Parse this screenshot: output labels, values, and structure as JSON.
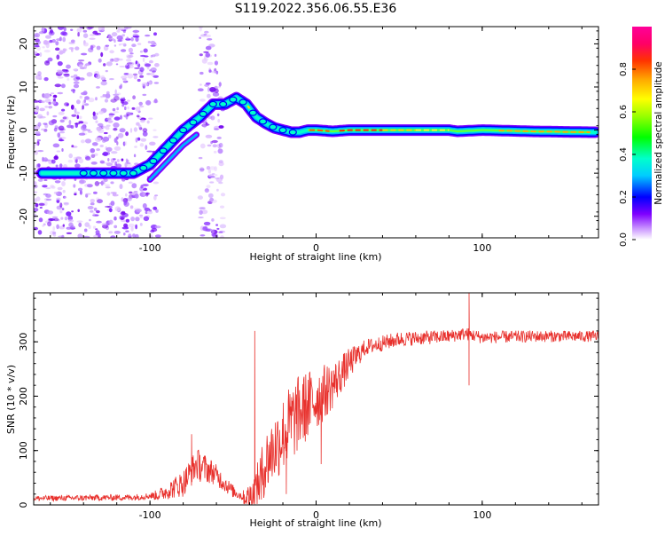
{
  "title": "S119.2022.356.06.55.E36",
  "chart_data": [
    {
      "type": "heatmap",
      "xlabel": "Height of straight line (km)",
      "ylabel": "Frequency (Hz)",
      "xlim": [
        -170,
        170
      ],
      "ylim": [
        -25,
        24
      ],
      "xticks": [
        -100,
        0,
        100
      ],
      "yticks": [
        -20,
        -10,
        0,
        10,
        20
      ],
      "ridge": {
        "x": [
          -165,
          -150,
          -135,
          -120,
          -110,
          -100,
          -90,
          -80,
          -70,
          -62,
          -55,
          -48,
          -42,
          -36,
          -30,
          -25,
          -20,
          -15,
          -10,
          -5,
          0,
          10,
          20,
          50,
          80,
          85,
          100,
          130,
          165
        ],
        "y": [
          -10,
          -10,
          -10,
          -10,
          -10,
          -8,
          -4,
          0,
          3,
          6,
          6,
          7.5,
          6,
          3,
          1.5,
          0.5,
          0,
          -0.5,
          -0.5,
          0,
          0,
          -0.3,
          0,
          0,
          0,
          -0.3,
          0,
          -0.3,
          -0.5
        ]
      },
      "colorbar": {
        "label": "Normalized spectral amplitude",
        "range": [
          0.0,
          1.0
        ],
        "ticks": [
          "0.0",
          "0.2",
          "0.4",
          "0.6",
          "0.8"
        ],
        "colormap": "gist_ncar_r"
      }
    },
    {
      "type": "line",
      "xlabel": "Height of straight line (km)",
      "ylabel": "SNR (10 * v/v)",
      "xlim": [
        -170,
        170
      ],
      "ylim": [
        0,
        390
      ],
      "xticks": [
        -100,
        0,
        100
      ],
      "yticks": [
        0,
        100,
        200,
        300
      ],
      "color": "#e8302c",
      "trend": {
        "x": [
          -170,
          -110,
          -95,
          -80,
          -72,
          -62,
          -50,
          -42,
          -37,
          -30,
          -20,
          -10,
          0,
          10,
          20,
          30,
          50,
          80,
          90,
          100,
          130,
          170
        ],
        "y": [
          12,
          14,
          18,
          40,
          75,
          60,
          25,
          12,
          20,
          80,
          130,
          170,
          195,
          220,
          260,
          290,
          305,
          310,
          315,
          308,
          310,
          310
        ]
      },
      "noise": {
        "x": [
          -170,
          -100,
          -80,
          -70,
          -60,
          -45,
          -38,
          -30,
          -15,
          0,
          15,
          30,
          80,
          170
        ],
        "amp": [
          5,
          6,
          25,
          30,
          20,
          8,
          35,
          60,
          75,
          60,
          35,
          15,
          12,
          10
        ]
      },
      "spikes": [
        {
          "x": -37,
          "y": 320
        },
        {
          "x": -33,
          "y": 10
        },
        {
          "x": -18,
          "y": 20
        },
        {
          "x": 3,
          "y": 75
        },
        {
          "x": 92,
          "y": 390
        },
        {
          "x": 92,
          "y": 220
        },
        {
          "x": -75,
          "y": 130
        }
      ]
    }
  ]
}
